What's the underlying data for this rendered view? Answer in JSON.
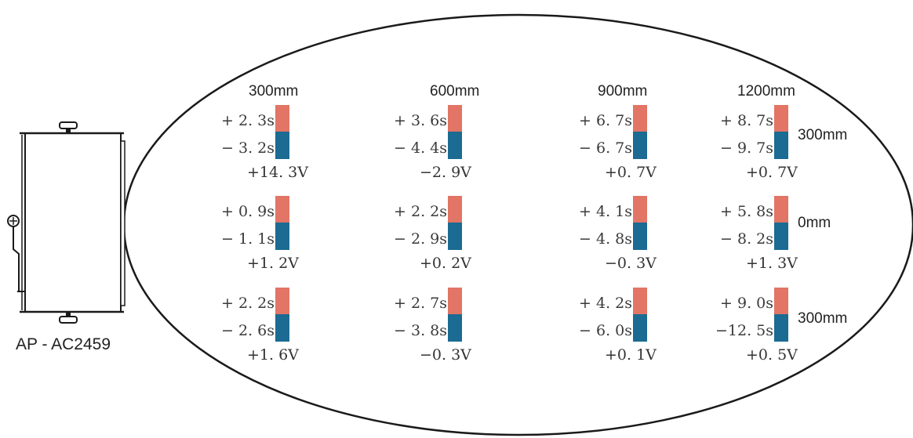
{
  "device": {
    "label": "AP - AC2459",
    "icon": "device-icon"
  },
  "columns": [
    "300mm",
    "600mm",
    "900mm",
    "1200mm"
  ],
  "rows": [
    "300mm",
    "0mm",
    "300mm"
  ],
  "colors": {
    "positive": "#e27565",
    "negative": "#1b6b93",
    "outline": "#1a1a1a"
  },
  "cells": [
    [
      {
        "pos": "+ 2. 3s",
        "neg": "− 3. 2s",
        "volt": "+14. 3V"
      },
      {
        "pos": "+ 3. 6s",
        "neg": "− 4. 4s",
        "volt": "−2. 9V"
      },
      {
        "pos": "+ 6. 7s",
        "neg": "− 6. 7s",
        "volt": "+0. 7V"
      },
      {
        "pos": "+ 8. 7s",
        "neg": "− 9. 7s",
        "volt": "+0. 7V"
      }
    ],
    [
      {
        "pos": "+ 0. 9s",
        "neg": "− 1. 1s",
        "volt": "+1. 2V"
      },
      {
        "pos": "+ 2. 2s",
        "neg": "− 2. 9s",
        "volt": "+0. 2V"
      },
      {
        "pos": "+ 4. 1s",
        "neg": "− 4. 8s",
        "volt": "−0. 3V"
      },
      {
        "pos": "+ 5. 8s",
        "neg": "− 8. 2s",
        "volt": "+1. 3V"
      }
    ],
    [
      {
        "pos": "+ 2. 2s",
        "neg": "− 2. 6s",
        "volt": "+1. 6V"
      },
      {
        "pos": "+ 2. 7s",
        "neg": "− 3. 8s",
        "volt": "−0. 3V"
      },
      {
        "pos": "+ 4. 2s",
        "neg": "− 6. 0s",
        "volt": "+0. 1V"
      },
      {
        "pos": "+ 9. 0s",
        "neg": "−12. 5s",
        "volt": "+0. 5V"
      }
    ]
  ]
}
